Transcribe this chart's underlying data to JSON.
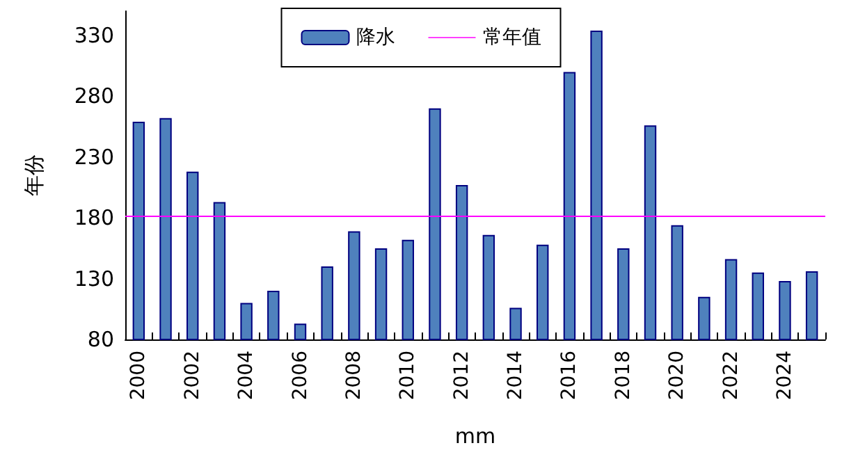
{
  "chart_data": {
    "type": "bar",
    "xlabel": "mm",
    "ylabel": "年份",
    "categories": [
      "2000",
      null,
      "2002",
      null,
      "2004",
      null,
      "2006",
      null,
      "2008",
      null,
      "2010",
      null,
      "2012",
      null,
      "2014",
      null,
      "2016",
      null,
      "2018",
      null,
      "2020",
      null,
      "2022",
      null,
      "2024",
      null
    ],
    "series": [
      {
        "name": "降水",
        "color": "#4f81bd",
        "values": [
          259,
          262,
          218,
          193,
          110,
          120,
          93,
          140,
          169,
          155,
          162,
          270,
          207,
          166,
          106,
          158,
          300,
          334,
          155,
          256,
          174,
          115,
          146,
          135,
          128,
          136
        ]
      }
    ],
    "ylim": [
      80,
      350
    ],
    "yticks": [
      80,
      130,
      180,
      230,
      280,
      330
    ],
    "ref_lines": [
      {
        "axis": "y",
        "value": 181,
        "label": "常年值",
        "color": "#ff00ff"
      }
    ],
    "grid": false,
    "legend": "top"
  }
}
